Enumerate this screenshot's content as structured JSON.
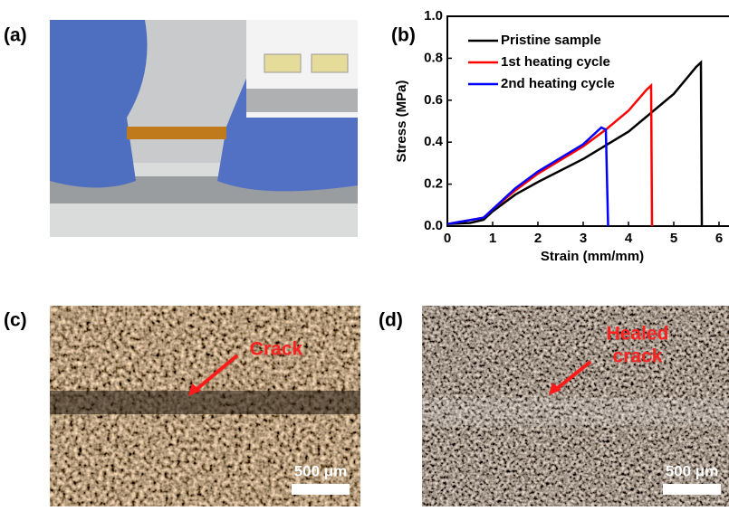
{
  "panel_labels": [
    "(a)",
    "(b)",
    "(c)",
    "(d)"
  ],
  "chart_data": {
    "type": "line",
    "x_label": "Strain (mm/mm)",
    "y_label": "Stress (MPa)",
    "xlim": [
      0,
      6
    ],
    "ylim": [
      0,
      1
    ],
    "xticks": [
      0,
      1,
      2,
      3,
      4,
      5,
      6
    ],
    "yticks": [
      {
        "value": 0,
        "label": "0.0"
      },
      0.2,
      0.4,
      0.6,
      0.8,
      {
        "value": 1,
        "label": "1.0"
      }
    ],
    "series": [
      {
        "name": "Pristine sample",
        "color": "#000000",
        "x": [
          0,
          0.5,
          0.8,
          1,
          1.5,
          2,
          3,
          4,
          5,
          5.5,
          5.6,
          5.62
        ],
        "values": [
          0.01,
          0.015,
          0.03,
          0.07,
          0.15,
          0.21,
          0.32,
          0.45,
          0.63,
          0.76,
          0.78,
          0
        ]
      },
      {
        "name": "1st heating cycle",
        "color": "#ff0000",
        "x": [
          0,
          0.8,
          1,
          1.5,
          2,
          3,
          3.5,
          4,
          4.4,
          4.5,
          4.52
        ],
        "values": [
          0.01,
          0.04,
          0.08,
          0.17,
          0.25,
          0.38,
          0.46,
          0.55,
          0.65,
          0.67,
          0
        ]
      },
      {
        "name": "2nd heating cycle",
        "color": "#0000ff",
        "x": [
          0,
          0.8,
          1,
          1.5,
          2,
          3,
          3.4,
          3.5,
          3.55
        ],
        "values": [
          0.01,
          0.04,
          0.08,
          0.18,
          0.26,
          0.39,
          0.47,
          0.46,
          0
        ]
      }
    ]
  },
  "micrographs": [
    {
      "annotation": [
        "Crack"
      ],
      "scale_bar": "500 μm"
    },
    {
      "annotation": [
        "Healed",
        "crack"
      ],
      "scale_bar": "500 μm"
    }
  ]
}
